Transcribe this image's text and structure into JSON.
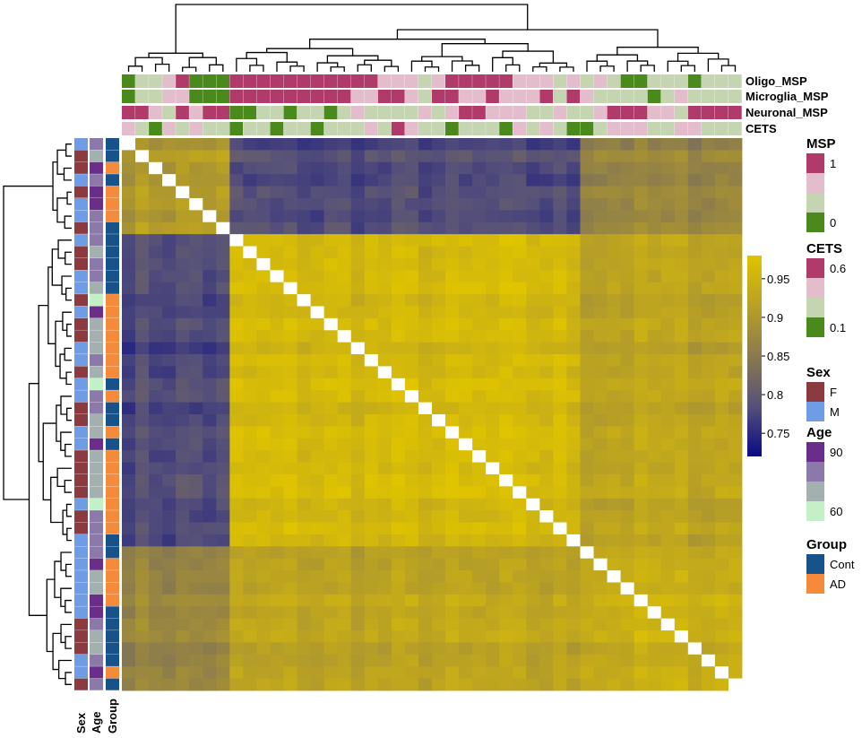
{
  "chart_data": {
    "type": "heatmap",
    "n_samples": 46,
    "column_annotation_labels": [
      "Oligo_MSP",
      "Microglia_MSP",
      "Neuronal_MSP",
      "CETS"
    ],
    "row_annotation_labels": [
      "Sex",
      "Age",
      "Group"
    ],
    "color_scale": {
      "ticks": [
        0.75,
        0.8,
        0.85,
        0.9,
        0.95
      ],
      "tick_labels": [
        "0.75",
        "0.8",
        "0.85",
        "0.9",
        "0.95"
      ],
      "range": [
        0.72,
        0.98
      ],
      "colors": [
        "#0a0a82",
        "#55507a",
        "#8a7a4e",
        "#b8a025",
        "#e0c400"
      ],
      "diagonal_color": "#ffffff"
    },
    "clusters": [
      {
        "size": 8,
        "within": 0.905,
        "detail": "samples 1-8"
      },
      {
        "size": 26,
        "within": 0.955,
        "detail": "samples 9-34"
      },
      {
        "size": 12,
        "within": 0.94,
        "detail": "samples 35-46"
      }
    ],
    "between_clusters": [
      [
        0.905,
        0.78,
        0.87
      ],
      [
        0.78,
        0.955,
        0.92
      ],
      [
        0.87,
        0.92,
        0.94
      ]
    ],
    "annotations": {
      "Oligo_MSP": [
        0,
        1,
        1,
        2,
        3,
        0,
        0,
        0,
        3,
        3,
        3,
        3,
        3,
        3,
        3,
        3,
        3,
        3,
        3,
        2,
        2,
        2,
        1,
        2,
        3,
        3,
        3,
        3,
        3,
        2,
        2,
        2,
        1,
        2,
        1,
        2,
        1,
        0,
        0,
        1,
        1,
        1,
        0,
        1,
        1,
        1
      ],
      "Microglia_MSP": [
        0,
        1,
        1,
        2,
        2,
        0,
        0,
        0,
        3,
        3,
        3,
        3,
        3,
        3,
        3,
        3,
        3,
        2,
        2,
        3,
        3,
        2,
        1,
        3,
        3,
        2,
        2,
        3,
        2,
        2,
        2,
        3,
        1,
        3,
        2,
        1,
        1,
        1,
        1,
        0,
        1,
        2,
        1,
        1,
        1,
        1
      ],
      "Neuronal_MSP": [
        3,
        3,
        2,
        1,
        3,
        2,
        3,
        3,
        0,
        0,
        1,
        1,
        0,
        1,
        1,
        0,
        1,
        2,
        1,
        1,
        1,
        1,
        2,
        1,
        2,
        3,
        3,
        2,
        2,
        2,
        1,
        1,
        2,
        1,
        1,
        2,
        3,
        3,
        3,
        2,
        2,
        1,
        3,
        3,
        3,
        3
      ],
      "CETS": [
        2,
        1,
        0,
        2,
        1,
        2,
        1,
        1,
        0,
        1,
        1,
        0,
        1,
        1,
        0,
        1,
        1,
        1,
        2,
        1,
        3,
        2,
        1,
        1,
        0,
        1,
        1,
        1,
        0,
        2,
        1,
        2,
        1,
        0,
        0,
        1,
        2,
        2,
        2,
        1,
        1,
        2,
        2,
        1,
        1,
        1
      ],
      "Sex": [
        "M",
        "F",
        "F",
        "M",
        "F",
        "M",
        "M",
        "F",
        "M",
        "F",
        "F",
        "M",
        "M",
        "F",
        "M",
        "F",
        "F",
        "M",
        "M",
        "F",
        "M",
        "M",
        "F",
        "F",
        "M",
        "M",
        "F",
        "F",
        "F",
        "F",
        "M",
        "F",
        "F",
        "M",
        "M",
        "M",
        "M",
        "M",
        "M",
        "M",
        "F",
        "F",
        "F",
        "M",
        "M",
        "F"
      ],
      "Age": [
        2,
        1,
        3,
        2,
        3,
        3,
        2,
        2,
        2,
        1,
        2,
        2,
        1,
        0,
        3,
        1,
        1,
        1,
        2,
        1,
        0,
        2,
        2,
        1,
        1,
        3,
        1,
        1,
        1,
        1,
        0,
        2,
        2,
        2,
        2,
        3,
        1,
        1,
        3,
        3,
        2,
        1,
        1,
        2,
        3,
        2
      ],
      "Group": [
        "Cont",
        "Cont",
        "AD",
        "Cont",
        "AD",
        "AD",
        "AD",
        "Cont",
        "Cont",
        "Cont",
        "Cont",
        "Cont",
        "Cont",
        "AD",
        "AD",
        "AD",
        "AD",
        "AD",
        "AD",
        "AD",
        "Cont",
        "AD",
        "Cont",
        "Cont",
        "AD",
        "Cont",
        "AD",
        "AD",
        "AD",
        "AD",
        "AD",
        "AD",
        "AD",
        "Cont",
        "Cont",
        "AD",
        "AD",
        "AD",
        "AD",
        "Cont",
        "Cont",
        "Cont",
        "Cont",
        "Cont",
        "AD",
        "Cont"
      ]
    },
    "legends": [
      {
        "title": "MSP",
        "entries": [
          {
            "label": "1",
            "color": "#b03a6a"
          },
          {
            "label": "",
            "color": "#e3bdcb"
          },
          {
            "label": "",
            "color": "#c5d4b1"
          },
          {
            "label": "0",
            "color": "#4a8a1c"
          }
        ]
      },
      {
        "title": "CETS",
        "entries": [
          {
            "label": "0.6",
            "color": "#b03a6a"
          },
          {
            "label": "",
            "color": "#e3bdcb"
          },
          {
            "label": "",
            "color": "#c5d4b1"
          },
          {
            "label": "0.1",
            "color": "#4a8a1c"
          }
        ]
      },
      {
        "title": "Sex",
        "entries": [
          {
            "label": "F",
            "color": "#8b3a40"
          },
          {
            "label": "M",
            "color": "#6e9de6"
          }
        ]
      },
      {
        "title": "Age",
        "entries": [
          {
            "label": "90",
            "color": "#6a2d8a"
          },
          {
            "label": "",
            "color": "#8b79aa"
          },
          {
            "label": "",
            "color": "#a4afb0"
          },
          {
            "label": "60",
            "color": "#c4f0c8"
          }
        ]
      },
      {
        "title": "Group",
        "entries": [
          {
            "label": "Cont",
            "color": "#17528a"
          },
          {
            "label": "AD",
            "color": "#f58a3a"
          }
        ]
      }
    ]
  }
}
